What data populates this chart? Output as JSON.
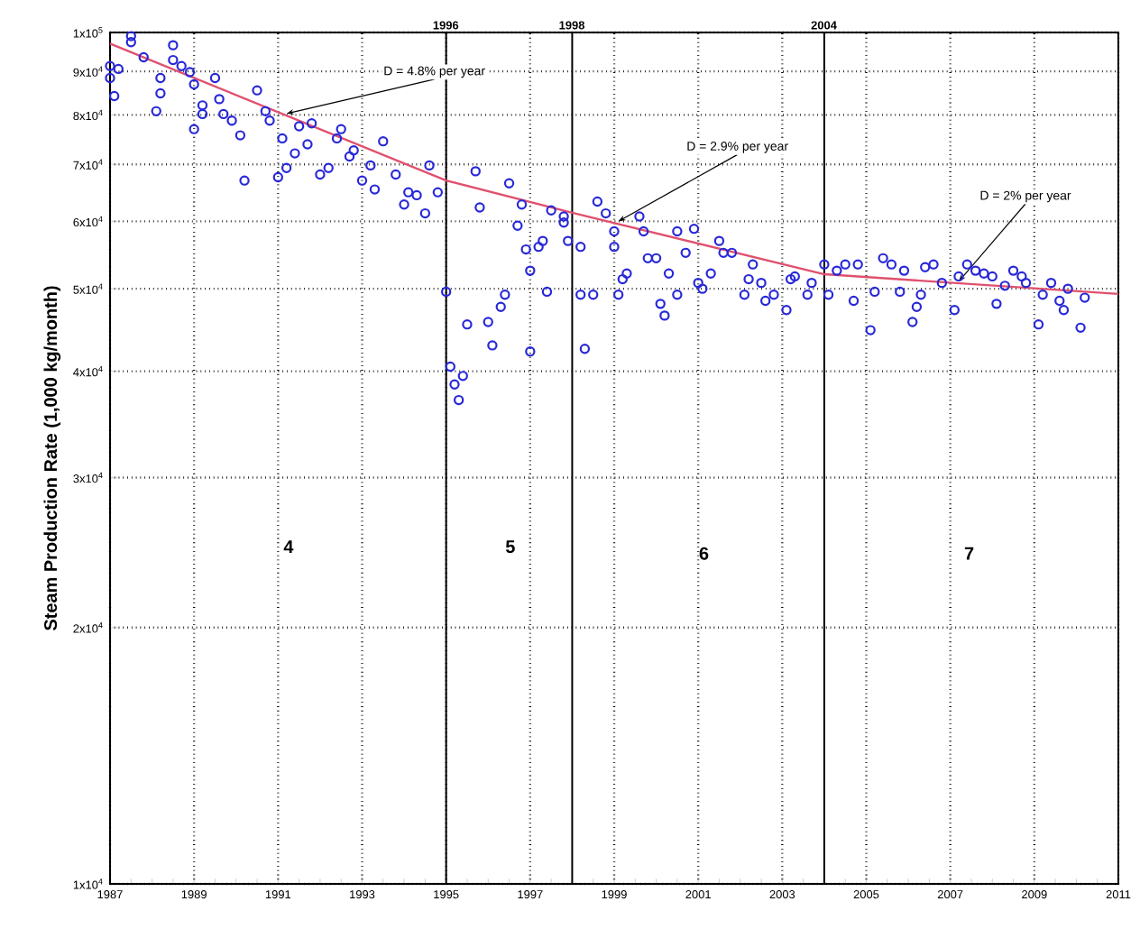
{
  "chart_data": {
    "type": "scatter",
    "ylabel": "Steam Production Rate (1,000 kg/month)",
    "xlim": [
      1987,
      2011
    ],
    "xticks": [
      1987,
      1989,
      1991,
      1993,
      1995,
      1997,
      1999,
      2001,
      2003,
      2005,
      2007,
      2009,
      2011
    ],
    "ylim": [
      10000,
      100000
    ],
    "yticks": [
      {
        "value": 10000,
        "label": "1x10$^{4}$"
      },
      {
        "value": 20000,
        "label": "2x10$^{4}$"
      },
      {
        "value": 30000,
        "label": "3x10$^{4}$"
      },
      {
        "value": 40000,
        "label": "4x10$^{4}$"
      },
      {
        "value": 50000,
        "label": "5x10$^{4}$"
      },
      {
        "value": 60000,
        "label": "6x10$^{4}$"
      },
      {
        "value": 70000,
        "label": "7x10$^{4}$"
      },
      {
        "value": 80000,
        "label": "8x10$^{4}$"
      },
      {
        "value": 90000,
        "label": "9x10$^{4}$"
      },
      {
        "value": 100000,
        "label": "1x10$^{5}$"
      }
    ],
    "log": "y",
    "grid": true,
    "marker": "circle",
    "series": [
      {
        "color": "#2828d8",
        "x": [
          1987.0,
          1987.0,
          1987.1,
          1987.2,
          1987.5,
          1987.5,
          1987.8,
          1988.1,
          1988.2,
          1988.2,
          1988.5,
          1988.5,
          1988.7,
          1988.9,
          1989.0,
          1989.0,
          1989.2,
          1989.2,
          1989.5,
          1989.6,
          1989.7,
          1989.9,
          1990.1,
          1990.2,
          1990.5,
          1990.7,
          1990.8,
          1991.0,
          1991.1,
          1991.2,
          1991.4,
          1991.5,
          1991.7,
          1991.8,
          1992.0,
          1992.2,
          1992.4,
          1992.5,
          1992.7,
          1992.8,
          1993.0,
          1993.2,
          1993.3,
          1993.5,
          1993.8,
          1994.0,
          1994.1,
          1994.3,
          1994.5,
          1994.6,
          1994.8,
          1995.0,
          1995.1,
          1995.2,
          1995.3,
          1995.4,
          1995.5,
          1995.7,
          1995.8,
          1996.0,
          1996.1,
          1996.3,
          1996.4,
          1996.5,
          1996.7,
          1996.8,
          1996.9,
          1997.0,
          1997.0,
          1997.2,
          1997.3,
          1997.4,
          1997.5,
          1997.8,
          1997.9,
          1997.8,
          1998.2,
          1998.2,
          1998.3,
          1998.5,
          1998.6,
          1998.8,
          1999.0,
          1999.0,
          1999.1,
          1999.2,
          1999.3,
          1999.6,
          1999.7,
          1999.8,
          2000.0,
          2000.1,
          2000.2,
          2000.3,
          2000.5,
          2000.5,
          2000.7,
          2000.9,
          2001.0,
          2001.1,
          2001.3,
          2001.5,
          2001.6,
          2001.8,
          2002.1,
          2002.2,
          2002.3,
          2002.5,
          2002.6,
          2002.8,
          2003.1,
          2003.2,
          2003.3,
          2003.6,
          2003.7,
          2004.0,
          2004.1,
          2004.3,
          2004.5,
          2004.7,
          2004.8,
          2005.1,
          2005.2,
          2005.4,
          2005.6,
          2005.8,
          2005.9,
          2006.1,
          2006.2,
          2006.3,
          2006.4,
          2006.6,
          2006.8,
          2007.1,
          2007.2,
          2007.4,
          2007.6,
          2007.8,
          2008.0,
          2008.1,
          2008.3,
          2008.5,
          2008.7,
          2008.8,
          2009.1,
          2009.2,
          2009.4,
          2009.6,
          2009.7,
          2009.8,
          2010.1,
          2010.2
        ],
        "values": [
          91300,
          88400,
          84200,
          90600,
          99000,
          97400,
          93500,
          80800,
          88400,
          84800,
          96600,
          92800,
          91300,
          89800,
          86900,
          77000,
          82100,
          80200,
          88400,
          83500,
          80200,
          78800,
          75700,
          67000,
          85500,
          80800,
          78800,
          67600,
          75100,
          69300,
          72100,
          77600,
          73900,
          78200,
          68100,
          69300,
          75100,
          77000,
          71500,
          72700,
          67000,
          69800,
          65400,
          74500,
          68100,
          62800,
          64900,
          64400,
          61300,
          69800,
          64900,
          49600,
          40500,
          38600,
          37000,
          39500,
          45400,
          68700,
          62300,
          45700,
          42900,
          47600,
          49200,
          66500,
          59300,
          62800,
          55600,
          52500,
          42200,
          56000,
          56900,
          49600,
          61800,
          59800,
          56900,
          60800,
          56000,
          49200,
          42500,
          49200,
          63300,
          61300,
          58400,
          56000,
          49200,
          51300,
          52100,
          60800,
          58400,
          54300,
          54300,
          48000,
          46500,
          52100,
          49200,
          58400,
          55100,
          58800,
          50800,
          50000,
          52100,
          56900,
          55100,
          55100,
          49200,
          51300,
          53400,
          50800,
          48400,
          49200,
          47200,
          51300,
          51700,
          49200,
          50800,
          53400,
          49200,
          52500,
          53400,
          48400,
          53400,
          44700,
          49600,
          54300,
          53400,
          49600,
          52500,
          45700,
          47600,
          49200,
          53000,
          53400,
          50800,
          47200,
          51700,
          53400,
          52500,
          52100,
          51700,
          48000,
          50400,
          52500,
          51700,
          50800,
          45400,
          49200,
          50800,
          48400,
          47200,
          50000,
          45000,
          48800
        ]
      },
      {
        "type": "line",
        "color": "#e0506e",
        "marker": "none",
        "line_style": "solid",
        "x": [
          1987,
          1995,
          1998,
          2004,
          2011
        ],
        "values": [
          97000,
          67000,
          61400,
          52000,
          49300
        ]
      }
    ],
    "ref_lines": [
      {
        "axis": "x",
        "value": 1995,
        "color": "#000000",
        "line_style": "solid"
      },
      {
        "axis": "x",
        "value": 1998,
        "color": "#000000",
        "line_style": "solid"
      },
      {
        "axis": "x",
        "value": 2004,
        "color": "#000000",
        "line_style": "solid"
      }
    ],
    "annotations": [
      {
        "text": "D = 4.8% per year",
        "x": 1991.2,
        "y": 80300
      },
      {
        "text": "D = 2.9% per year",
        "x": 1999.1,
        "y": 60000
      },
      {
        "text": "D = 2% per year",
        "x": 2007.2,
        "y": 51000
      },
      "4",
      "5",
      "6",
      "7",
      "1996",
      "1998",
      "2004"
    ]
  }
}
